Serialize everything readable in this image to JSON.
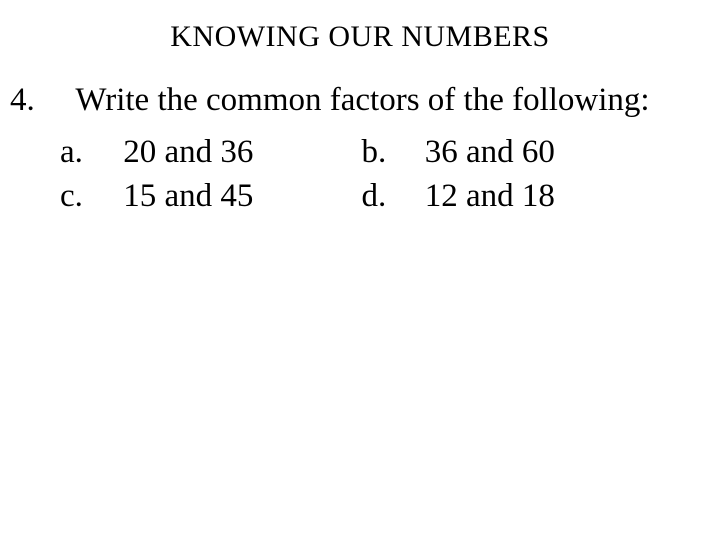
{
  "title": "KNOWING OUR NUMBERS",
  "question": {
    "number": "4.",
    "text": "Write the common factors of  the following:"
  },
  "options": {
    "a": {
      "label": "a.",
      "text": "20 and 36"
    },
    "b": {
      "label": "b.",
      "text": "36 and 60"
    },
    "c": {
      "label": "c.",
      "text": "15 and 45"
    },
    "d": {
      "label": "d.",
      "text": "12 and 18"
    }
  },
  "colors": {
    "background": "#ffffff",
    "text": "#000000"
  },
  "typography": {
    "title_fontsize": 30,
    "body_fontsize": 33,
    "title_family": "handwriting",
    "body_family": "serif"
  }
}
